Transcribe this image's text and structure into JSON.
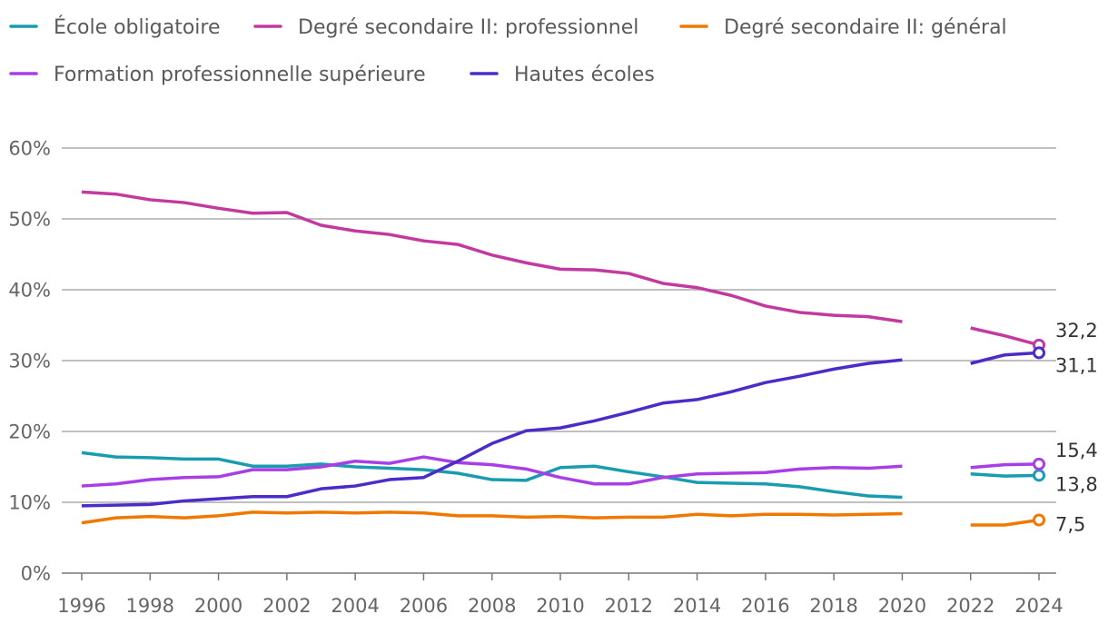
{
  "chart_data": {
    "type": "line",
    "title": "",
    "xlabel": "",
    "ylabel": "",
    "legend": "top-left",
    "grid": true,
    "x": [
      1996,
      1997,
      1998,
      1999,
      2000,
      2001,
      2002,
      2003,
      2004,
      2005,
      2006,
      2007,
      2008,
      2009,
      2010,
      2011,
      2012,
      2013,
      2014,
      2015,
      2016,
      2017,
      2018,
      2019,
      2020,
      2021,
      2022,
      2023,
      2024
    ],
    "xticks": [
      "1996",
      "1998",
      "2000",
      "2002",
      "2004",
      "2006",
      "2008",
      "2010",
      "2012",
      "2014",
      "2016",
      "2018",
      "2020",
      "2022",
      "2024"
    ],
    "ylim": [
      0,
      60
    ],
    "ytick_values": [
      0,
      10,
      20,
      30,
      40,
      50,
      60
    ],
    "yticks": [
      "0%",
      "10%",
      "20%",
      "30%",
      "40%",
      "50%",
      "60%"
    ],
    "series": [
      {
        "name": "École obligatoire",
        "color": "#1a9cb0",
        "values": [
          17.0,
          16.4,
          16.3,
          16.1,
          16.1,
          15.1,
          15.1,
          15.4,
          15.0,
          14.8,
          14.6,
          14.1,
          13.2,
          13.1,
          14.9,
          15.1,
          14.3,
          13.6,
          12.8,
          12.7,
          12.6,
          12.2,
          11.5,
          10.9,
          10.7,
          null,
          14.0,
          13.7,
          13.8
        ],
        "end_label": "13,8"
      },
      {
        "name": "Degré secondaire II: professionnel",
        "color": "#c2399f",
        "values": [
          53.8,
          53.5,
          52.7,
          52.3,
          51.5,
          50.8,
          50.9,
          49.1,
          48.3,
          47.8,
          46.9,
          46.4,
          44.9,
          43.8,
          42.9,
          42.8,
          42.3,
          40.9,
          40.3,
          39.2,
          37.7,
          36.8,
          36.4,
          36.2,
          35.5,
          null,
          34.6,
          33.5,
          32.2
        ],
        "end_label": "32,2"
      },
      {
        "name": "Degré secondaire II: général",
        "color": "#f07800",
        "values": [
          7.1,
          7.8,
          8.0,
          7.8,
          8.1,
          8.6,
          8.5,
          8.6,
          8.5,
          8.6,
          8.5,
          8.1,
          8.1,
          7.9,
          8.0,
          7.8,
          7.9,
          7.9,
          8.3,
          8.1,
          8.3,
          8.3,
          8.2,
          8.3,
          8.4,
          null,
          6.8,
          6.8,
          7.5
        ],
        "end_label": "7,5"
      },
      {
        "name": "Formation professionnelle supérieure",
        "color": "#a83ee6",
        "values": [
          12.3,
          12.6,
          13.2,
          13.5,
          13.6,
          14.6,
          14.6,
          15.0,
          15.8,
          15.5,
          16.4,
          15.6,
          15.3,
          14.7,
          13.5,
          12.6,
          12.6,
          13.5,
          14.0,
          14.1,
          14.2,
          14.7,
          14.9,
          14.8,
          15.1,
          null,
          14.9,
          15.3,
          15.4
        ],
        "end_label": "15,4"
      },
      {
        "name": "Hautes écoles",
        "color": "#4b2cc8",
        "values": [
          9.5,
          9.6,
          9.7,
          10.2,
          10.5,
          10.8,
          10.8,
          11.9,
          12.3,
          13.2,
          13.5,
          15.8,
          18.3,
          20.1,
          20.5,
          21.5,
          22.7,
          24.0,
          24.5,
          25.6,
          26.9,
          27.8,
          28.8,
          29.6,
          30.1,
          null,
          29.6,
          30.8,
          31.1
        ],
        "end_label": "31,1"
      }
    ]
  }
}
